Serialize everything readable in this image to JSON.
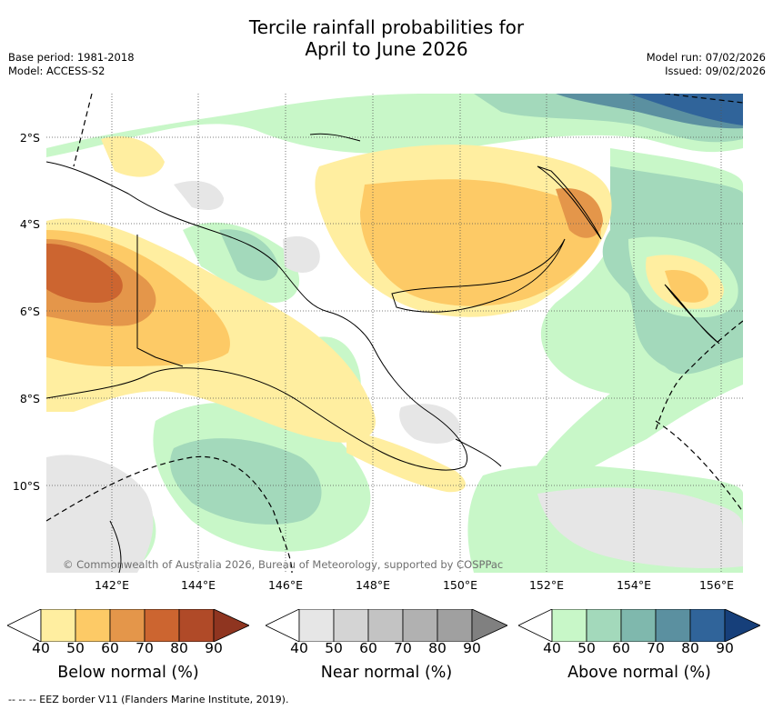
{
  "title": {
    "line1": "Tercile rainfall probabilities for",
    "line2": "April to June 2026"
  },
  "meta_left": {
    "base_period": "Base period: 1981-2018",
    "model": "Model: ACCESS-S2"
  },
  "meta_right": {
    "model_run": "Model run: 07/02/2026",
    "issued": "Issued: 09/02/2026"
  },
  "map": {
    "copyright": "© Commonwealth of Australia 2026, Bureau of Meteorology, supported by COSPPac",
    "lat_labels": [
      "2°S",
      "4°S",
      "6°S",
      "8°S",
      "10°S"
    ],
    "lon_labels": [
      "142°E",
      "144°E",
      "146°E",
      "148°E",
      "150°E",
      "152°E",
      "154°E",
      "156°E"
    ]
  },
  "legends": [
    {
      "title": "Below normal (%)",
      "ticks": [
        "40",
        "50",
        "60",
        "70",
        "80",
        "90"
      ],
      "colors": [
        "#ffeea0",
        "#fdca66",
        "#e4964a",
        "#cc6530",
        "#b04a28",
        "#8f3520"
      ]
    },
    {
      "title": "Near normal (%)",
      "ticks": [
        "40",
        "50",
        "60",
        "70",
        "80",
        "90"
      ],
      "colors": [
        "#e6e6e6",
        "#d4d4d4",
        "#c3c3c3",
        "#b1b1b1",
        "#a0a0a0",
        "#808080"
      ]
    },
    {
      "title": "Above normal (%)",
      "ticks": [
        "40",
        "50",
        "60",
        "70",
        "80",
        "90"
      ],
      "colors": [
        "#c8f7c8",
        "#a3d9bb",
        "#7fb8ad",
        "#5b90a0",
        "#30649a",
        "#163f7a"
      ]
    }
  ],
  "footer": "--  --  -- EEZ border V11 (Flanders Marine Institute, 2019)."
}
